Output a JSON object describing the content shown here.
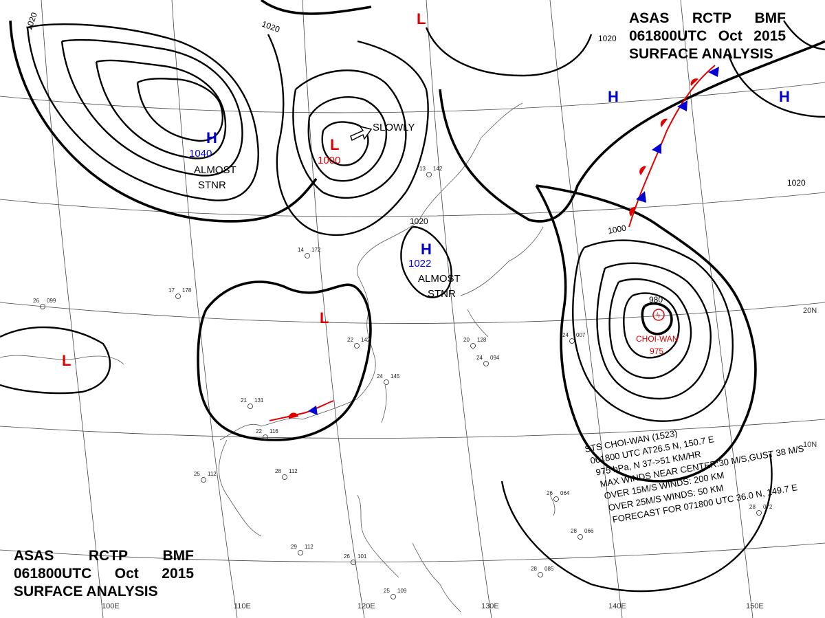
{
  "header": {
    "line1": [
      "ASAS",
      "RCTP",
      "BMF"
    ],
    "line2": [
      "061800UTC",
      "Oct",
      "2015"
    ],
    "line3": "SURFACE ANALYSIS"
  },
  "pressure_systems": [
    {
      "type": "H",
      "label": "H",
      "value": "1040",
      "note": "ALMOST STNR",
      "color": "#0000d0"
    },
    {
      "type": "L",
      "label": "L",
      "value": "1000",
      "note": "SLOWLY",
      "color": "#e00000"
    },
    {
      "type": "H",
      "label": "H",
      "value": "1022",
      "note": "ALMOST STNR",
      "color": "#0000d0"
    },
    {
      "type": "L",
      "label": "L",
      "value": "",
      "note": "",
      "color": "#e00000"
    },
    {
      "type": "L",
      "label": "L",
      "value": "",
      "note": "",
      "color": "#e00000"
    },
    {
      "type": "L",
      "label": "L",
      "value": "",
      "note": "",
      "color": "#e00000"
    },
    {
      "type": "H",
      "label": "H",
      "value": "",
      "note": "",
      "color": "#0000d0"
    },
    {
      "type": "H",
      "label": "H",
      "value": "",
      "note": "",
      "color": "#0000d0"
    }
  ],
  "isobar_labels": [
    "1020",
    "1020",
    "1020",
    "1020",
    "1020",
    "1000",
    "980"
  ],
  "typhoon": {
    "name": "CHOI-WAN",
    "central_pressure": "975",
    "info_lines": [
      "STS  CHOI-WAN  (1523)",
      "061800 UTC  AT26.5 N, 150.7 E",
      "975 hPa, N  37->51 KM/HR",
      "MAX WINDS NEAR CENTER:30 M/S,GUST 38 M/S",
      "OVER 15M/S WINDS: 200 KM",
      "OVER 25M/S WINDS: 50 KM",
      "FORECAST FOR 071800 UTC 36.0 N, 149.7 E"
    ]
  },
  "grid_labels": {
    "longitudes": [
      "100E",
      "110E",
      "120E",
      "130E",
      "140E",
      "150E"
    ],
    "latitudes": [
      "20N",
      "10N"
    ]
  },
  "station_samples": [
    {
      "t": "26",
      "p": "099"
    },
    {
      "t": "25",
      "p": "112"
    },
    {
      "t": "28",
      "p": "112"
    },
    {
      "t": "21",
      "p": "131"
    },
    {
      "t": "24",
      "p": "145"
    },
    {
      "t": "20",
      "p": "128"
    },
    {
      "t": "24",
      "p": "094"
    },
    {
      "t": "28",
      "p": "085"
    },
    {
      "t": "28",
      "p": "072"
    },
    {
      "t": "17",
      "p": "178"
    },
    {
      "t": "13",
      "p": "142"
    },
    {
      "t": "22",
      "p": "142"
    },
    {
      "t": "29",
      "p": "112"
    },
    {
      "t": "25",
      "p": "109"
    },
    {
      "t": "26",
      "p": "101"
    },
    {
      "t": "24",
      "p": "007"
    },
    {
      "t": "26",
      "p": "064"
    },
    {
      "t": "28",
      "p": "066"
    },
    {
      "t": "22",
      "p": "116"
    },
    {
      "t": "14",
      "p": "172"
    }
  ],
  "colors": {
    "high": "#0000d0",
    "low": "#e00000",
    "warm_front": "#e00000",
    "cold_front": "#0000d0"
  }
}
